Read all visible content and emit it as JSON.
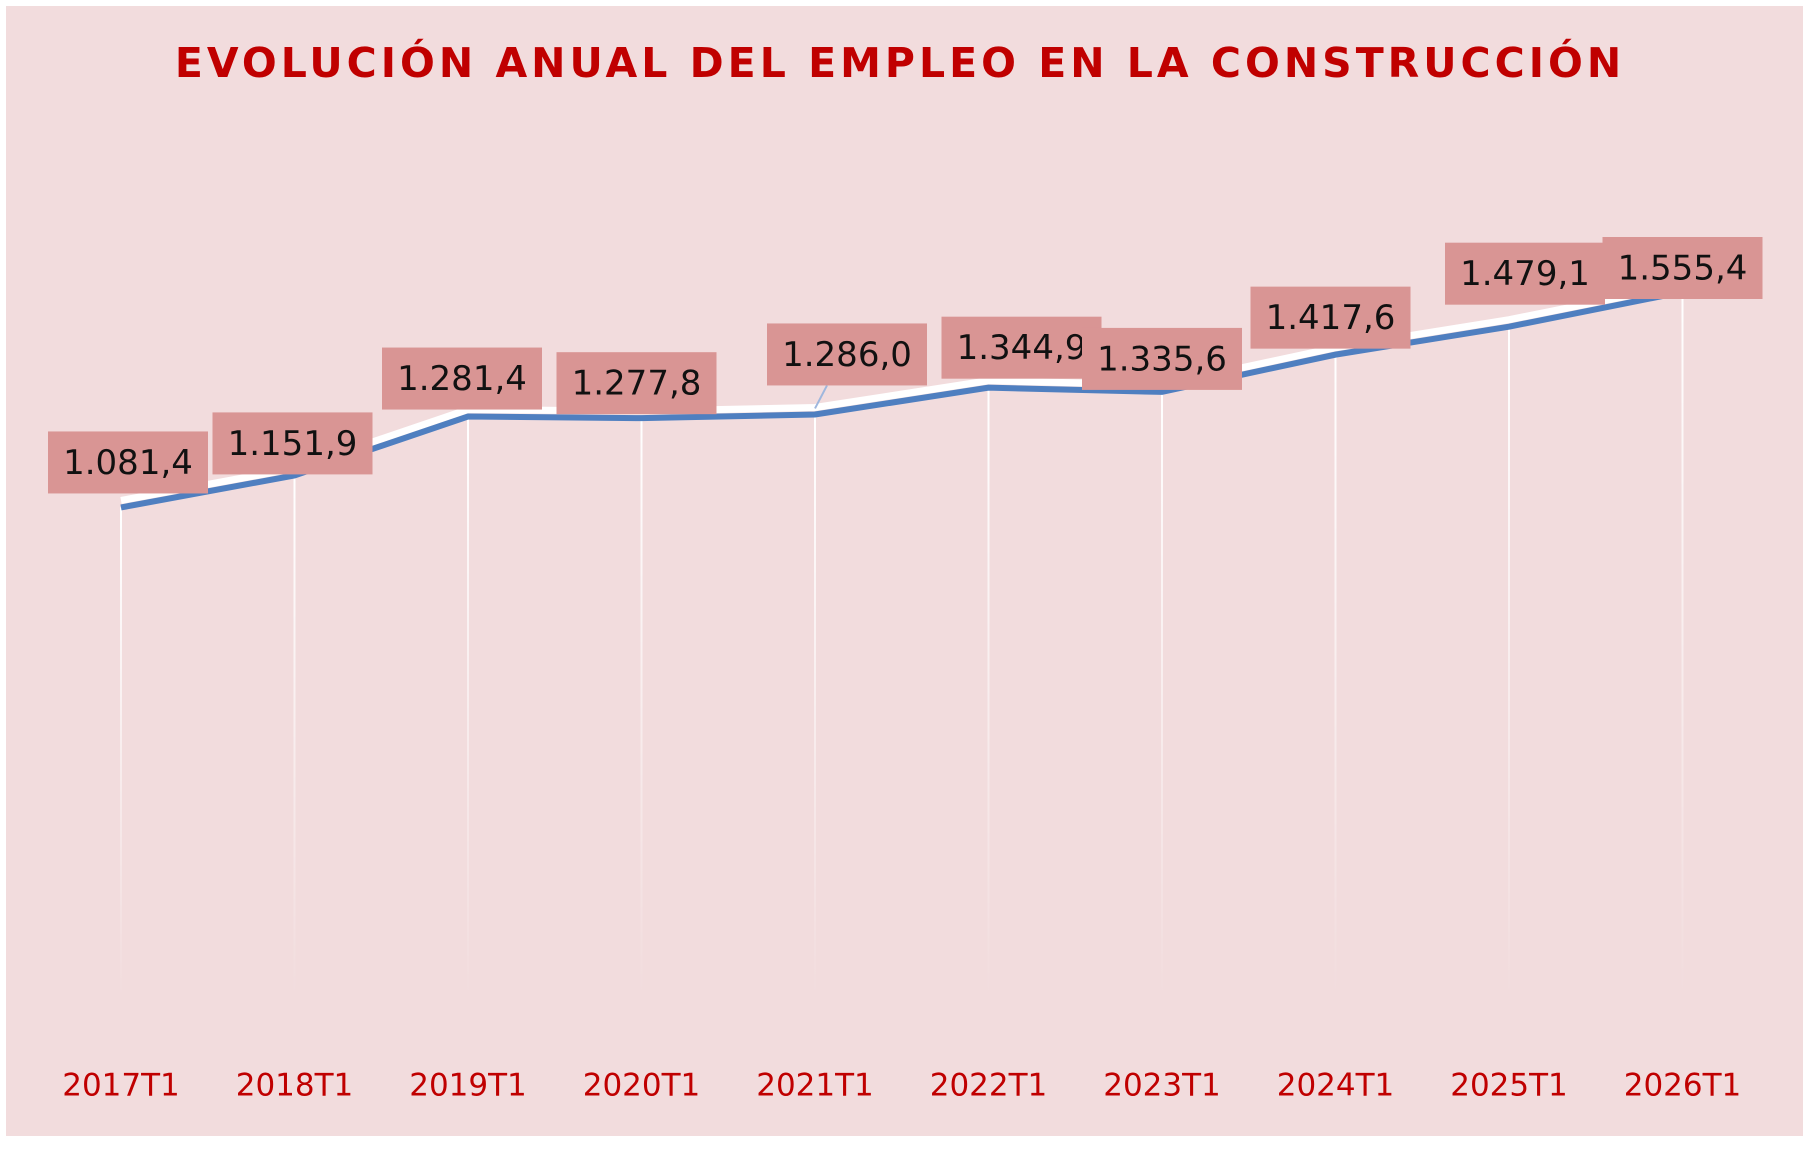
{
  "chart_data": {
    "type": "line",
    "title": "EVOLUCIÓN ANUAL DEL EMPLEO EN LA CONSTRUCCIÓN",
    "categories": [
      "2017T1",
      "2018T1",
      "2019T1",
      "2020T1",
      "2021T1",
      "2022T1",
      "2023T1",
      "2024T1",
      "2025T1",
      "2026T1"
    ],
    "series": [
      {
        "color": "#4f7fc0",
        "values": [
          1081.4,
          1151.9,
          1281.4,
          1277.8,
          1286.0,
          1344.9,
          1335.6,
          1417.6,
          1479.1,
          1555.4
        ],
        "value_labels": [
          "1.081,4",
          "1.151,9",
          "1.281,4",
          "1.277,8",
          "1.286,0",
          "1.344,9",
          "1.335,6",
          "1.417,6",
          "1.479,1",
          "1.555,4"
        ]
      }
    ]
  }
}
